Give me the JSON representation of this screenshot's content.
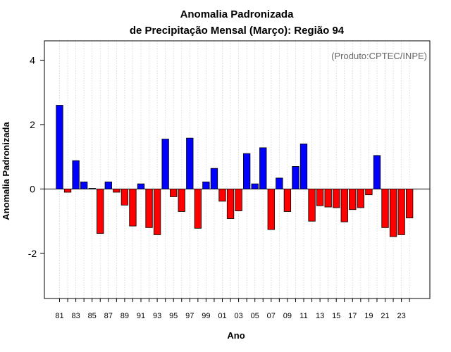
{
  "chart_data": {
    "type": "bar",
    "title": "Anomalia Padronizada",
    "subtitle": "de Precipitação Mensal (Março): Região 94",
    "xlabel": "Ano",
    "ylabel": "Anomalia Padronizada",
    "credit": "(Produto:CPTEC/INPE)",
    "ylim": [
      -3.4,
      4.6
    ],
    "yticks": [
      -2,
      0,
      2,
      4
    ],
    "yticklabels": [
      "-2",
      "0",
      "2",
      "4"
    ],
    "grid": "vertical dotted",
    "categories": [
      "81",
      "82",
      "83",
      "84",
      "85",
      "86",
      "87",
      "88",
      "89",
      "90",
      "91",
      "92",
      "93",
      "94",
      "95",
      "96",
      "97",
      "98",
      "99",
      "00",
      "01",
      "02",
      "03",
      "04",
      "05",
      "06",
      "07",
      "08",
      "09",
      "10",
      "11",
      "12",
      "13",
      "14",
      "15",
      "16",
      "17",
      "18",
      "19",
      "20",
      "21",
      "22",
      "23",
      "24"
    ],
    "values": [
      2.6,
      -0.1,
      0.88,
      0.22,
      0.02,
      -1.38,
      0.22,
      -0.1,
      -0.5,
      -1.15,
      0.16,
      -1.2,
      -1.42,
      1.55,
      -0.24,
      -0.7,
      1.58,
      -1.22,
      0.22,
      0.64,
      -0.38,
      -0.92,
      -0.68,
      1.1,
      0.16,
      1.28,
      -1.26,
      0.34,
      -0.7,
      0.7,
      1.4,
      -1.0,
      -0.52,
      -0.56,
      -0.58,
      -1.02,
      -0.64,
      -0.58,
      -0.18,
      1.04,
      -1.2,
      -1.48,
      -1.42,
      -0.9
    ],
    "xticklabels": [
      "81",
      "83",
      "85",
      "87",
      "89",
      "91",
      "93",
      "95",
      "97",
      "99",
      "01",
      "03",
      "05",
      "07",
      "09",
      "11",
      "13",
      "15",
      "17",
      "19",
      "21",
      "23"
    ],
    "colors": {
      "positive": "#0000ff",
      "negative": "#ff0000",
      "border": "#000000",
      "grid": "#d3d3d3",
      "credit": "#666666"
    }
  }
}
